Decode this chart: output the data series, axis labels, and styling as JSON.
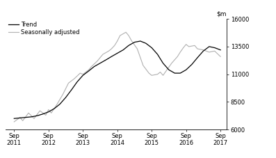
{
  "legend": [
    "Trend",
    "Seasonally adjusted"
  ],
  "trend_color": "#000000",
  "seasonal_color": "#b0b0b0",
  "ylim": [
    6000,
    16000
  ],
  "yticks": [
    6000,
    8500,
    11000,
    13500,
    16000
  ],
  "xtick_labels": [
    "Sep\n2011",
    "Sep\n2012",
    "Sep\n2013",
    "Sep\n2014",
    "Sep\n2015",
    "Sep\n2016",
    "Sep\n2017"
  ],
  "xtick_positions": [
    2011.75,
    2012.75,
    2013.75,
    2014.75,
    2015.75,
    2016.75,
    2017.75
  ],
  "xlim": [
    2011.5,
    2017.92
  ],
  "trend_x": [
    2011.75,
    2011.92,
    2012.08,
    2012.25,
    2012.42,
    2012.58,
    2012.75,
    2012.92,
    2013.08,
    2013.25,
    2013.42,
    2013.58,
    2013.75,
    2013.92,
    2014.08,
    2014.25,
    2014.42,
    2014.58,
    2014.75,
    2014.92,
    2015.08,
    2015.25,
    2015.42,
    2015.58,
    2015.75,
    2015.92,
    2016.08,
    2016.25,
    2016.42,
    2016.58,
    2016.75,
    2016.92,
    2017.08,
    2017.25,
    2017.42,
    2017.58,
    2017.75
  ],
  "trend_y": [
    7000,
    7050,
    7100,
    7150,
    7250,
    7400,
    7600,
    7900,
    8300,
    8900,
    9600,
    10300,
    10900,
    11300,
    11700,
    12000,
    12300,
    12600,
    12900,
    13200,
    13600,
    13900,
    14000,
    13800,
    13400,
    12800,
    12000,
    11400,
    11100,
    11100,
    11400,
    11900,
    12500,
    13100,
    13500,
    13400,
    13200
  ],
  "seasonal_x": [
    2011.75,
    2011.92,
    2012.0,
    2012.17,
    2012.33,
    2012.5,
    2012.67,
    2012.75,
    2012.83,
    2013.0,
    2013.17,
    2013.33,
    2013.5,
    2013.67,
    2013.75,
    2013.92,
    2014.0,
    2014.17,
    2014.33,
    2014.5,
    2014.58,
    2014.67,
    2014.75,
    2014.83,
    2015.0,
    2015.08,
    2015.17,
    2015.33,
    2015.5,
    2015.67,
    2015.75,
    2015.92,
    2016.0,
    2016.08,
    2016.17,
    2016.33,
    2016.5,
    2016.58,
    2016.67,
    2016.75,
    2016.83,
    2017.0,
    2017.08,
    2017.25,
    2017.42,
    2017.58,
    2017.75
  ],
  "seasonal_y": [
    6700,
    7100,
    6800,
    7500,
    7000,
    7700,
    7300,
    7800,
    7500,
    8300,
    9200,
    10200,
    10600,
    11100,
    11000,
    11400,
    11700,
    12200,
    12800,
    13100,
    13300,
    13600,
    14000,
    14500,
    14800,
    14500,
    14000,
    13300,
    11800,
    11100,
    10900,
    11000,
    11200,
    10900,
    11300,
    12000,
    12600,
    13000,
    13400,
    13700,
    13500,
    13600,
    13300,
    13200,
    13000,
    13100,
    12600
  ],
  "background_color": "#ffffff",
  "linewidth_trend": 0.9,
  "linewidth_seasonal": 0.8
}
